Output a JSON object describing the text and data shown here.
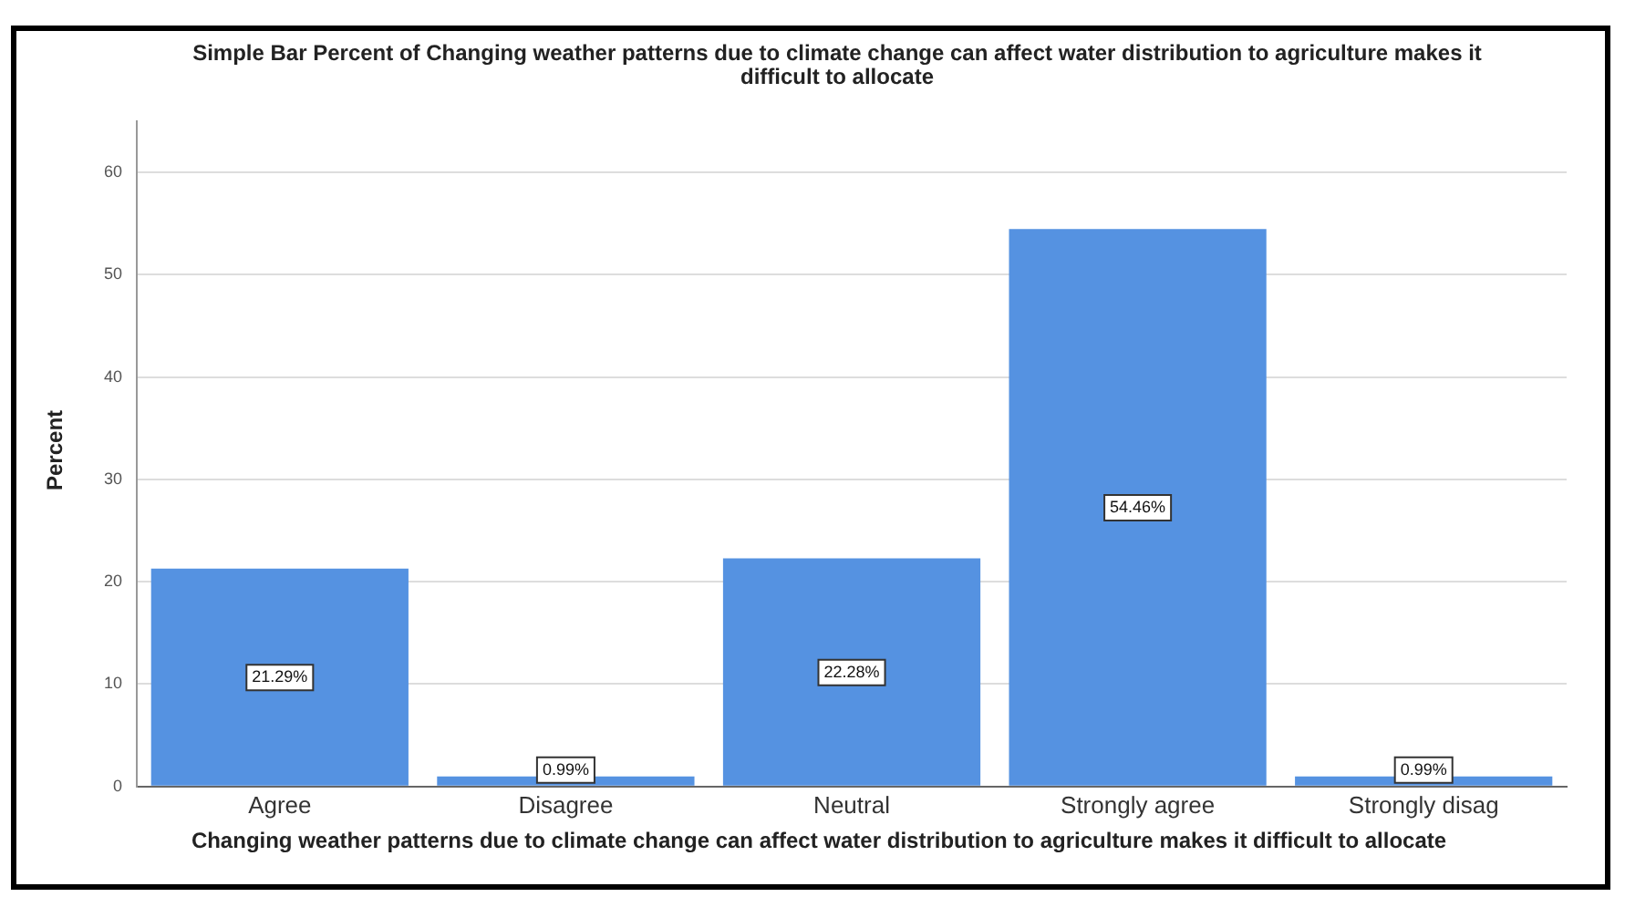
{
  "chart_data": {
    "type": "bar",
    "title": "Simple Bar Percent of Changing weather patterns due to climate change can affect water distribution to agriculture makes it difficult to allocate",
    "xlabel": "Changing weather patterns due to climate change can affect water distribution to agriculture makes it difficult to allocate",
    "ylabel": "Percent",
    "categories": [
      "Agree",
      "Disagree",
      "Neutral",
      "Strongly agree",
      "Strongly disag"
    ],
    "values": [
      21.29,
      0.99,
      22.28,
      54.46,
      0.99
    ],
    "value_labels": [
      "21.29%",
      "0.99%",
      "22.28%",
      "54.46%",
      "0.99%"
    ],
    "color": "#5592e1",
    "ylim": [
      0,
      65
    ],
    "yticks": [
      0,
      10,
      20,
      30,
      40,
      50,
      60
    ],
    "grid": "y",
    "legend": false
  }
}
